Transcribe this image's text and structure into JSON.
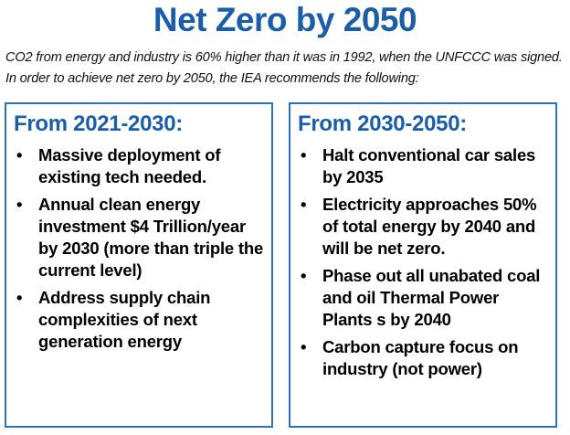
{
  "header": {
    "title": "Net Zero by 2050",
    "intro": "CO2 from energy and industry is 60% higher than it was in 1992, when the UNFCCC was signed. In order to achieve net zero by 2050, the IEA recommends the following:"
  },
  "columns": [
    {
      "heading": "From 2021-2030:",
      "items": [
        "Massive deployment of existing tech needed.",
        "Annual clean energy investment $4 Trillion/year by 2030 (more than triple the current level)",
        "Address supply chain complexities of next generation energy"
      ]
    },
    {
      "heading": "From 2030-2050:",
      "items": [
        "Halt conventional car sales by 2035",
        "Electricity approaches 50% of total energy by 2040 and will be net zero.",
        "Phase out all unabated coal and oil Thermal Power Plants s by 2040",
        "Carbon capture focus on industry (not power)"
      ]
    }
  ]
}
